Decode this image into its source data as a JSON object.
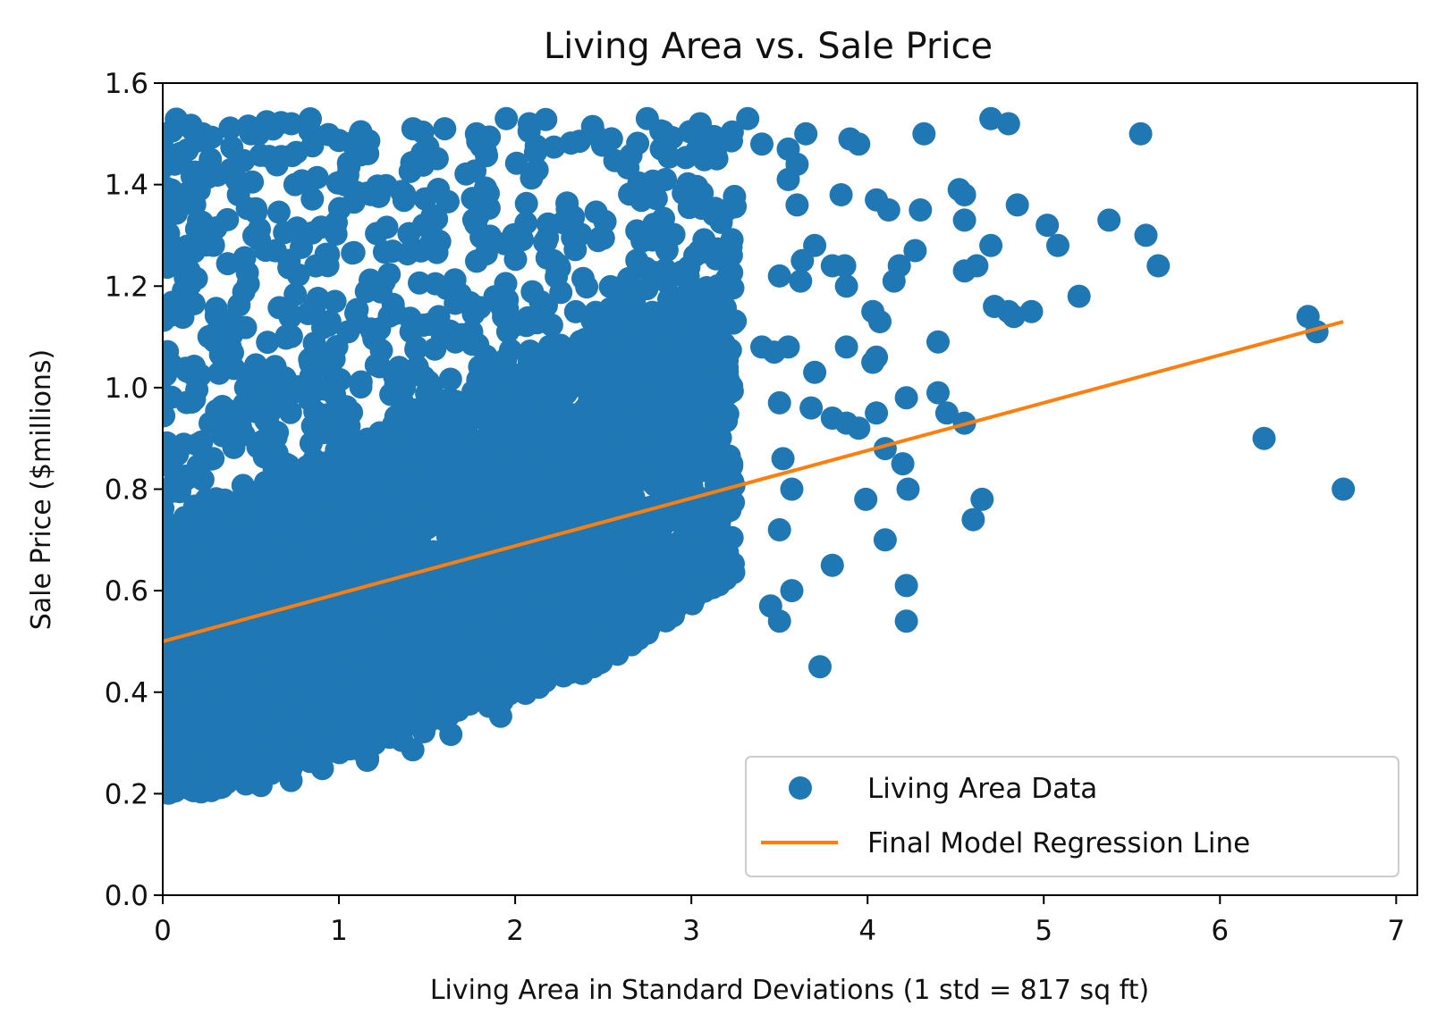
{
  "chart_data": {
    "type": "scatter",
    "title": "Living Area vs. Sale Price",
    "xlabel": "Living Area in Standard Deviations (1 std = 817 sq ft)",
    "ylabel": "Sale Price ($millions)",
    "xlim": [
      0,
      7.12
    ],
    "ylim": [
      0,
      1.6
    ],
    "xticks": [
      "0",
      "1",
      "2",
      "3",
      "4",
      "5",
      "6",
      "7"
    ],
    "yticks": [
      "0.0",
      "0.2",
      "0.4",
      "0.6",
      "0.8",
      "1.0",
      "1.2",
      "1.4",
      "1.6"
    ],
    "grid": false,
    "legend_position": "lower-right",
    "colors": {
      "scatter": "#1f77b4",
      "line": "#ff7f0e"
    },
    "series": [
      {
        "name": "Living Area Data",
        "kind": "scatter",
        "note": "dense cloud spanning x 0–3.5, y 0.18–1.53; sparse outliers listed",
        "points": [
          [
            0.5,
            1.5
          ],
          [
            0.73,
            1.52
          ],
          [
            1.12,
            1.5
          ],
          [
            1.42,
            1.51
          ],
          [
            1.6,
            1.51
          ],
          [
            1.78,
            1.5
          ],
          [
            1.95,
            1.53
          ],
          [
            2.08,
            1.52
          ],
          [
            2.45,
            1.5
          ],
          [
            2.75,
            1.53
          ],
          [
            3.05,
            1.52
          ],
          [
            3.32,
            1.53
          ],
          [
            3.65,
            1.5
          ],
          [
            4.32,
            1.5
          ],
          [
            4.7,
            1.53
          ],
          [
            4.8,
            1.52
          ],
          [
            5.55,
            1.5
          ],
          [
            0.1,
            1.45
          ],
          [
            0.27,
            1.45
          ],
          [
            3.4,
            1.48
          ],
          [
            3.55,
            1.47
          ],
          [
            3.9,
            1.49
          ],
          [
            3.95,
            1.48
          ],
          [
            3.55,
            1.41
          ],
          [
            3.6,
            1.44
          ],
          [
            3.85,
            1.38
          ],
          [
            4.05,
            1.37
          ],
          [
            4.12,
            1.35
          ],
          [
            4.3,
            1.35
          ],
          [
            4.52,
            1.39
          ],
          [
            4.55,
            1.38
          ],
          [
            4.55,
            1.33
          ],
          [
            4.85,
            1.36
          ],
          [
            5.02,
            1.32
          ],
          [
            5.08,
            1.28
          ],
          [
            5.37,
            1.33
          ],
          [
            5.58,
            1.3
          ],
          [
            5.65,
            1.24
          ],
          [
            3.6,
            1.36
          ],
          [
            3.7,
            1.28
          ],
          [
            3.63,
            1.25
          ],
          [
            3.8,
            1.24
          ],
          [
            3.87,
            1.24
          ],
          [
            3.88,
            1.2
          ],
          [
            4.15,
            1.21
          ],
          [
            4.18,
            1.24
          ],
          [
            4.27,
            1.27
          ],
          [
            4.55,
            1.23
          ],
          [
            4.62,
            1.24
          ],
          [
            4.7,
            1.28
          ],
          [
            4.72,
            1.16
          ],
          [
            4.8,
            1.15
          ],
          [
            4.83,
            1.14
          ],
          [
            4.93,
            1.15
          ],
          [
            5.2,
            1.18
          ],
          [
            3.5,
            1.22
          ],
          [
            3.62,
            1.21
          ],
          [
            4.03,
            1.15
          ],
          [
            4.07,
            1.13
          ],
          [
            3.88,
            1.08
          ],
          [
            4.03,
            1.05
          ],
          [
            4.05,
            1.06
          ],
          [
            4.4,
            1.09
          ],
          [
            3.4,
            1.08
          ],
          [
            3.47,
            1.07
          ],
          [
            3.55,
            1.08
          ],
          [
            3.7,
            1.03
          ],
          [
            3.5,
            0.97
          ],
          [
            3.68,
            0.96
          ],
          [
            3.8,
            0.94
          ],
          [
            3.88,
            0.93
          ],
          [
            3.95,
            0.92
          ],
          [
            4.05,
            0.95
          ],
          [
            4.22,
            0.98
          ],
          [
            4.4,
            0.99
          ],
          [
            4.45,
            0.95
          ],
          [
            4.55,
            0.93
          ],
          [
            4.1,
            0.88
          ],
          [
            4.2,
            0.85
          ],
          [
            4.23,
            0.8
          ],
          [
            3.52,
            0.86
          ],
          [
            3.57,
            0.8
          ],
          [
            3.99,
            0.78
          ],
          [
            4.65,
            0.78
          ],
          [
            4.6,
            0.74
          ],
          [
            3.5,
            0.72
          ],
          [
            4.1,
            0.7
          ],
          [
            3.8,
            0.65
          ],
          [
            4.22,
            0.61
          ],
          [
            3.45,
            0.57
          ],
          [
            3.57,
            0.6
          ],
          [
            3.5,
            0.54
          ],
          [
            4.22,
            0.54
          ],
          [
            3.73,
            0.45
          ],
          [
            6.5,
            1.14
          ],
          [
            6.55,
            1.11
          ],
          [
            6.25,
            0.9
          ],
          [
            6.7,
            0.8
          ]
        ]
      },
      {
        "name": "Final Model Regression Line",
        "kind": "line",
        "x": [
          0,
          6.7
        ],
        "y": [
          0.5,
          1.13
        ]
      }
    ]
  }
}
